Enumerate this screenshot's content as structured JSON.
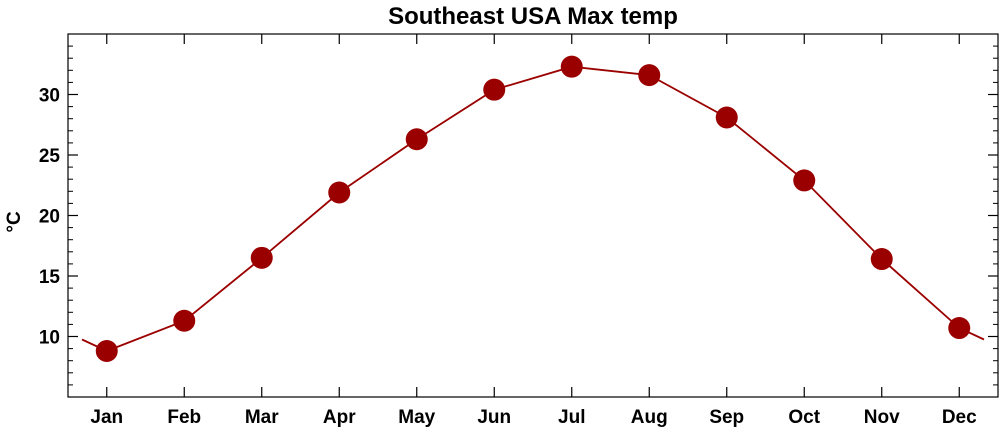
{
  "chart_data": {
    "type": "line",
    "title": "Southeast USA Max temp",
    "xlabel": "",
    "ylabel": "°C",
    "categories": [
      "Jan",
      "Feb",
      "Mar",
      "Apr",
      "May",
      "Jun",
      "Jul",
      "Aug",
      "Sep",
      "Oct",
      "Nov",
      "Dec"
    ],
    "series": [
      {
        "values": [
          8.8,
          11.3,
          16.5,
          21.9,
          26.3,
          30.4,
          32.3,
          31.6,
          28.1,
          22.9,
          16.4,
          10.7
        ],
        "color": "#9b0000"
      }
    ],
    "ylim": [
      5,
      35
    ],
    "yticks": [
      10,
      15,
      20,
      25,
      30
    ],
    "grid": false,
    "legend": "none",
    "line_extends_to_edges": true,
    "marker": "filled-circle",
    "axis_color": "#000000"
  }
}
